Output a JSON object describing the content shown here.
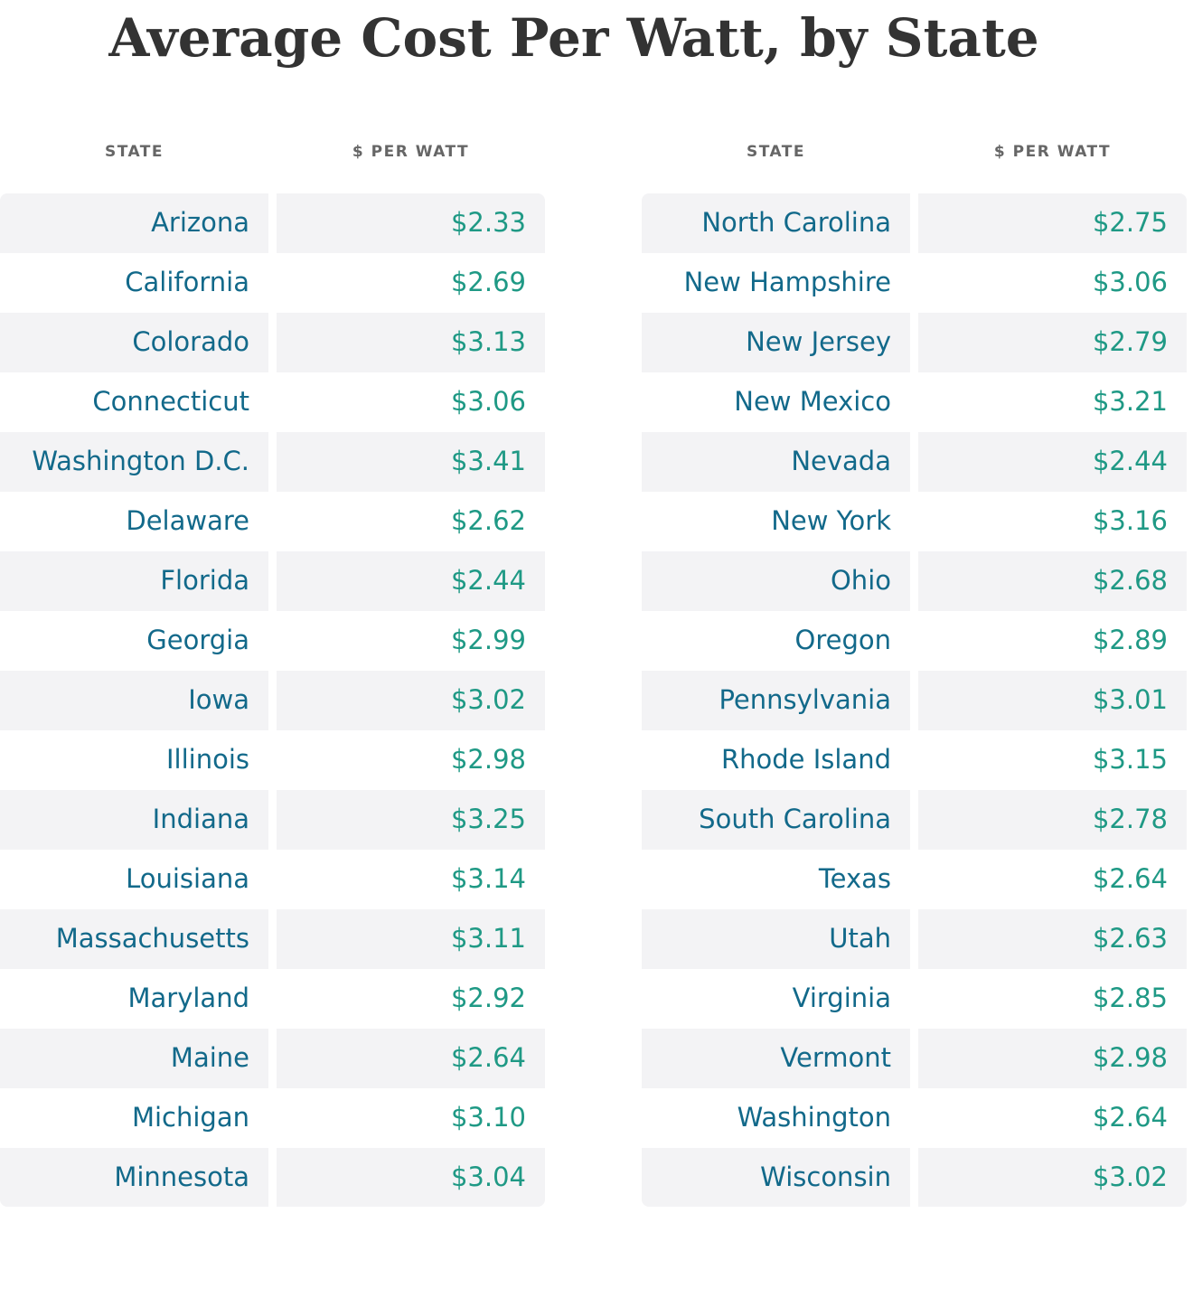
{
  "title": "Average Cost Per Watt, by State",
  "tables": [
    {
      "headers": [
        "STATE",
        "$ PER WATT"
      ],
      "rows": [
        [
          "Arizona",
          "$2.33"
        ],
        [
          "California",
          "$2.69"
        ],
        [
          "Colorado",
          "$3.13"
        ],
        [
          "Connecticut",
          "$3.06"
        ],
        [
          "Washington D.C.",
          "$3.41"
        ],
        [
          "Delaware",
          "$2.62"
        ],
        [
          "Florida",
          "$2.44"
        ],
        [
          "Georgia",
          "$2.99"
        ],
        [
          "Iowa",
          "$3.02"
        ],
        [
          "Illinois",
          "$2.98"
        ],
        [
          "Indiana",
          "$3.25"
        ],
        [
          "Louisiana",
          "$3.14"
        ],
        [
          "Massachusetts",
          "$3.11"
        ],
        [
          "Maryland",
          "$2.92"
        ],
        [
          "Maine",
          "$2.64"
        ],
        [
          "Michigan",
          "$3.10"
        ],
        [
          "Minnesota",
          "$3.04"
        ]
      ]
    },
    {
      "headers": [
        "STATE",
        "$ PER WATT"
      ],
      "rows": [
        [
          "North Carolina",
          "$2.75"
        ],
        [
          "New Hampshire",
          "$3.06"
        ],
        [
          "New Jersey",
          "$2.79"
        ],
        [
          "New Mexico",
          "$3.21"
        ],
        [
          "Nevada",
          "$2.44"
        ],
        [
          "New York",
          "$3.16"
        ],
        [
          "Ohio",
          "$2.68"
        ],
        [
          "Oregon",
          "$2.89"
        ],
        [
          "Pennsylvania",
          "$3.01"
        ],
        [
          "Rhode Island",
          "$3.15"
        ],
        [
          "South Carolina",
          "$2.78"
        ],
        [
          "Texas",
          "$2.64"
        ],
        [
          "Utah",
          "$2.63"
        ],
        [
          "Virginia",
          "$2.85"
        ],
        [
          "Vermont",
          "$2.98"
        ],
        [
          "Washington",
          "$2.64"
        ],
        [
          "Wisconsin",
          "$3.02"
        ]
      ]
    }
  ]
}
